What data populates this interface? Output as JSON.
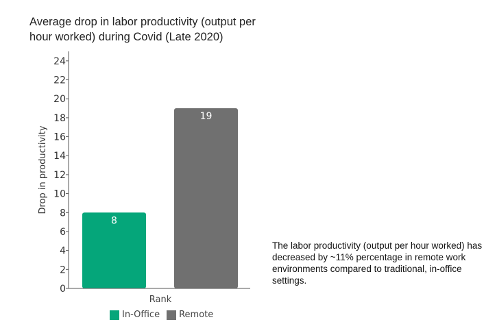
{
  "title": "Average drop in labor productivity (output per hour worked) during Covid (Late 2020)",
  "note": "The labor productivity (output per hour worked) has decreased by ~11% percentage in remote work environments compared to traditional, in-office settings.",
  "colors": {
    "in_office": "#05a67a",
    "remote": "#707070",
    "axis": "#555555"
  },
  "chart_data": {
    "type": "bar",
    "title": "Average drop in labor productivity (output per hour worked) during Covid (Late 2020)",
    "categories": [
      "Rank"
    ],
    "xlabel": "Rank",
    "ylabel": "Drop in productivity",
    "ylim": [
      0,
      25
    ],
    "yticks": [
      0,
      2,
      4,
      6,
      8,
      10,
      12,
      14,
      16,
      18,
      20,
      22,
      24
    ],
    "grid": false,
    "legend": "bottom",
    "series": [
      {
        "name": "In-Office",
        "values": [
          8
        ],
        "color": "#05a67a"
      },
      {
        "name": "Remote",
        "values": [
          19
        ],
        "color": "#707070"
      }
    ]
  }
}
